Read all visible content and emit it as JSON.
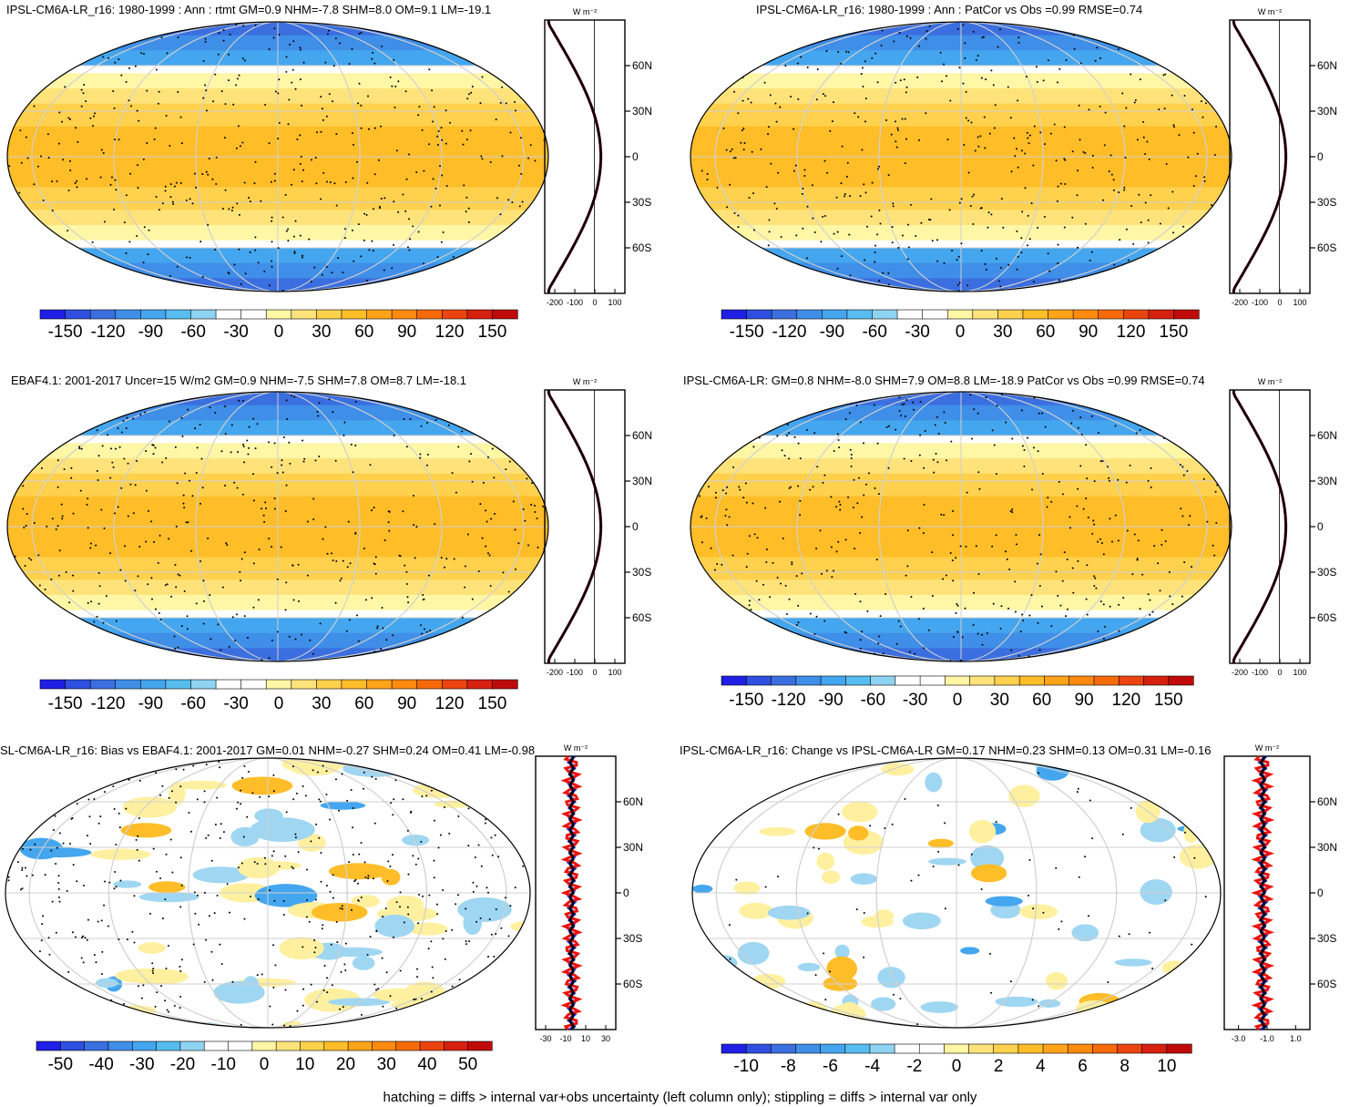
{
  "panels": [
    {
      "id": "p1",
      "title": "IPSL-CM6A-LR_r16: 1980-1999 : Ann : rtmt GM=0.9 NHM=-7.8 SHM=8.0 OM=9.1 LM=-19.1",
      "kind": "clim",
      "xticks": [
        "-200",
        "-100",
        "0",
        "100"
      ],
      "lat_ticks": [
        "60N",
        "30N",
        "0",
        "30S",
        "60S"
      ],
      "units": "W m⁻²",
      "colorbar": [
        "-150",
        "-120",
        "-90",
        "-60",
        "-30",
        "0",
        "30",
        "60",
        "90",
        "120",
        "150"
      ]
    },
    {
      "id": "p2",
      "title": "IPSL-CM6A-LR_r16: 1980-1999 : Ann : PatCor vs Obs =0.99 RMSE=0.74",
      "kind": "clim",
      "xticks": [
        "-200",
        "-100",
        "0",
        "100"
      ],
      "lat_ticks": [
        "60N",
        "30N",
        "0",
        "30S",
        "60S"
      ],
      "units": "W m⁻²",
      "colorbar": [
        "-150",
        "-120",
        "-90",
        "-60",
        "-30",
        "0",
        "30",
        "60",
        "90",
        "120",
        "150"
      ]
    },
    {
      "id": "p3",
      "title": "EBAF4.1: 2001-2017 Uncer=15 W/m2 GM=0.9 NHM=-7.5 SHM=7.8 OM=8.7 LM=-18.1",
      "kind": "clim",
      "xticks": [
        "-200",
        "-100",
        "0",
        "100"
      ],
      "lat_ticks": [
        "60N",
        "30N",
        "0",
        "30S",
        "60S"
      ],
      "units": "W m⁻²",
      "colorbar": [
        "-150",
        "-120",
        "-90",
        "-60",
        "-30",
        "0",
        "30",
        "60",
        "90",
        "120",
        "150"
      ]
    },
    {
      "id": "p4",
      "title": "IPSL-CM6A-LR: GM=0.8 NHM=-8.0 SHM=7.9 OM=8.8 LM=-18.9 PatCor vs Obs =0.99 RMSE=0.74",
      "kind": "clim",
      "xticks": [
        "-200",
        "-100",
        "0",
        "100"
      ],
      "lat_ticks": [
        "60N",
        "30N",
        "0",
        "30S",
        "60S"
      ],
      "units": "W m⁻²",
      "colorbar": [
        "-150",
        "-120",
        "-90",
        "-60",
        "-30",
        "0",
        "30",
        "60",
        "90",
        "120",
        "150"
      ]
    },
    {
      "id": "p5",
      "title": "SL-CM6A-LR_r16: Bias vs EBAF4.1: 2001-2017 GM=0.01 NHM=-0.27 SHM=0.24 OM=0.41 LM=-0.98",
      "kind": "bias",
      "xticks": [
        "-30",
        "-10",
        "10",
        "30"
      ],
      "lat_ticks": [
        "60N",
        "30N",
        "0",
        "30S",
        "60S"
      ],
      "units": "W m⁻²",
      "colorbar": [
        "-50",
        "-40",
        "-30",
        "-20",
        "-10",
        "0",
        "10",
        "20",
        "30",
        "40",
        "50"
      ]
    },
    {
      "id": "p6",
      "title": "IPSL-CM6A-LR_r16: Change vs IPSL-CM6A-LR GM=0.17 NHM=0.23 SHM=0.13 OM=0.31 LM=-0.16",
      "kind": "change",
      "xticks": [
        "-3.0",
        "-1.0",
        "1.0"
      ],
      "lat_ticks": [
        "60N",
        "30N",
        "0",
        "30S",
        "60S"
      ],
      "units": "W m⁻²",
      "colorbar": [
        "-10",
        "-8",
        "-6",
        "-4",
        "-2",
        "0",
        "2",
        "4",
        "6",
        "8",
        "10"
      ]
    }
  ],
  "colors": {
    "palette": [
      "#1f1fe6",
      "#2e4fe0",
      "#3b6fe0",
      "#3f8ee8",
      "#44a6ee",
      "#57bdf0",
      "#8fd3f2",
      "#ffffff",
      "#ffffff",
      "#fff6a6",
      "#ffe37a",
      "#ffd14d",
      "#ffbd28",
      "#ffa418",
      "#ff8a10",
      "#f76a0a",
      "#ec4410",
      "#d62010",
      "#c00a0a"
    ],
    "line_model": "#e8140c",
    "line_obs": "#1431e0",
    "line_ref": "#000000"
  },
  "footnote": "hatching = diffs > internal var+obs uncertainty (left column only); stippling = diffs > internal var only"
}
